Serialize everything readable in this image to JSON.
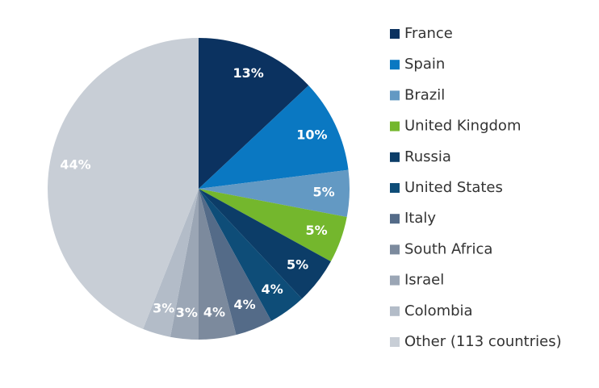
{
  "chart_data": {
    "type": "pie",
    "categories": [
      "France",
      "Spain",
      "Brazil",
      "United Kingdom",
      "Russia",
      "United States",
      "Italy",
      "South Africa",
      "Israel",
      "Colombia",
      "Other (113 countries)"
    ],
    "values": [
      13,
      10,
      5,
      5,
      5,
      4,
      4,
      4,
      3,
      3,
      44
    ],
    "value_labels": [
      "13%",
      "10%",
      "5%",
      "5%",
      "5%",
      "4%",
      "4%",
      "4%",
      "3%",
      "3%",
      "44%"
    ],
    "colors": [
      "#0b3260",
      "#0a78c2",
      "#6399c3",
      "#74b72d",
      "#0c3d68",
      "#0e4d78",
      "#546b88",
      "#7c8a9d",
      "#9ba6b5",
      "#b3bcc8",
      "#c8ced6"
    ],
    "legend": "right"
  }
}
